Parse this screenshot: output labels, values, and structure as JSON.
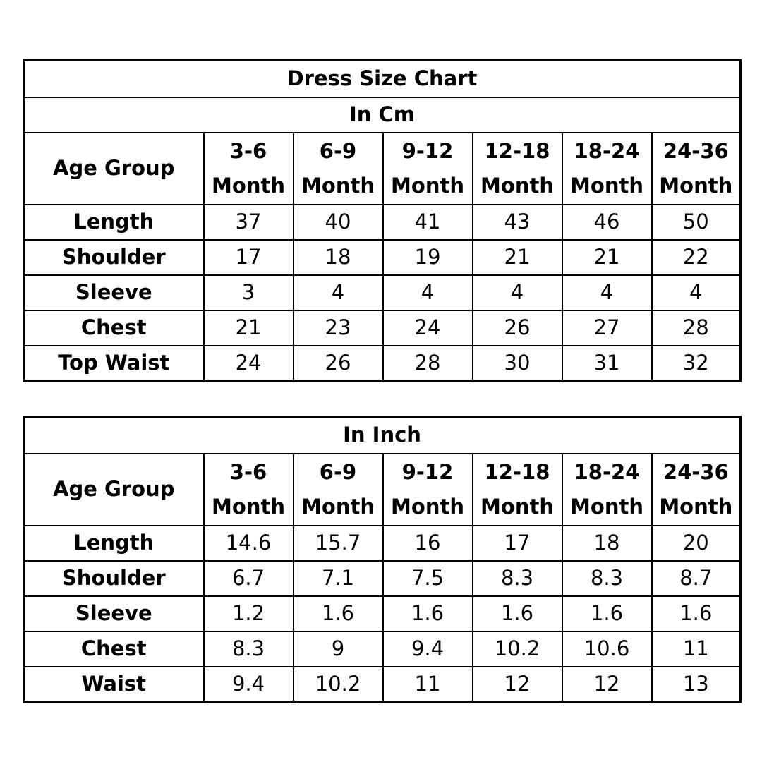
{
  "cm_table": {
    "title": "Dress Size Chart",
    "unit": "In Cm",
    "age_group_label": "Age Group",
    "sizes": [
      {
        "range": "3-6",
        "unit": "Month"
      },
      {
        "range": "6-9",
        "unit": "Month"
      },
      {
        "range": "9-12",
        "unit": "Month"
      },
      {
        "range": "12-18",
        "unit": "Month"
      },
      {
        "range": "18-24",
        "unit": "Month"
      },
      {
        "range": "24-36",
        "unit": "Month"
      }
    ],
    "rows": [
      {
        "label": "Length",
        "values": [
          "37",
          "40",
          "41",
          "43",
          "46",
          "50"
        ]
      },
      {
        "label": "Shoulder",
        "values": [
          "17",
          "18",
          "19",
          "21",
          "21",
          "22"
        ]
      },
      {
        "label": "Sleeve",
        "values": [
          "3",
          "4",
          "4",
          "4",
          "4",
          "4"
        ]
      },
      {
        "label": "Chest",
        "values": [
          "21",
          "23",
          "24",
          "26",
          "27",
          "28"
        ]
      },
      {
        "label": "Top Waist",
        "values": [
          "24",
          "26",
          "28",
          "30",
          "31",
          "32"
        ]
      }
    ]
  },
  "inch_table": {
    "unit": "In Inch",
    "age_group_label": "Age Group",
    "sizes": [
      {
        "range": "3-6",
        "unit": "Month"
      },
      {
        "range": "6-9",
        "unit": "Month"
      },
      {
        "range": "9-12",
        "unit": "Month"
      },
      {
        "range": "12-18",
        "unit": "Month"
      },
      {
        "range": "18-24",
        "unit": "Month"
      },
      {
        "range": "24-36",
        "unit": "Month"
      }
    ],
    "rows": [
      {
        "label": "Length",
        "values": [
          "14.6",
          "15.7",
          "16",
          "17",
          "18",
          "20"
        ]
      },
      {
        "label": "Shoulder",
        "values": [
          "6.7",
          "7.1",
          "7.5",
          "8.3",
          "8.3",
          "8.7"
        ]
      },
      {
        "label": "Sleeve",
        "values": [
          "1.2",
          "1.6",
          "1.6",
          "1.6",
          "1.6",
          "1.6"
        ]
      },
      {
        "label": "Chest",
        "values": [
          "8.3",
          "9",
          "9.4",
          "10.2",
          "10.6",
          "11"
        ]
      },
      {
        "label": "Waist",
        "values": [
          "9.4",
          "10.2",
          "11",
          "12",
          "12",
          "13"
        ]
      }
    ]
  }
}
